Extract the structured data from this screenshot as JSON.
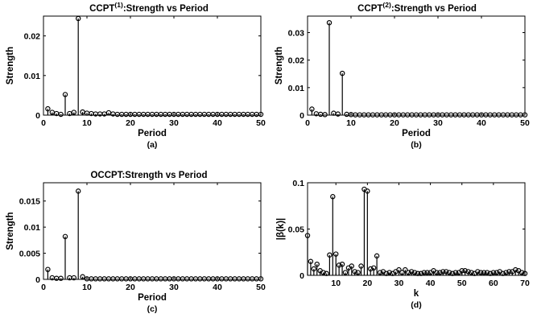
{
  "chart_data": [
    {
      "type": "stem",
      "title_main": "CCPT",
      "title_sup": "(1)",
      "title_rest": ":Strength vs Period",
      "xlabel": "Period",
      "ylabel": "Strength",
      "caption": "(a)",
      "xlim": [
        0,
        50
      ],
      "ylim": [
        0,
        0.025
      ],
      "xticks": [
        0,
        10,
        20,
        30,
        40,
        50
      ],
      "yticks": [
        0,
        0.01,
        0.02
      ],
      "ytick_labels": [
        "0",
        "0.01",
        "0.02"
      ],
      "x": [
        1,
        2,
        3,
        4,
        5,
        6,
        7,
        8,
        9,
        10,
        11,
        12,
        13,
        14,
        15,
        16,
        17,
        18,
        19,
        20,
        21,
        22,
        23,
        24,
        25,
        26,
        27,
        28,
        29,
        30,
        31,
        32,
        33,
        34,
        35,
        36,
        37,
        38,
        39,
        40,
        41,
        42,
        43,
        44,
        45,
        46,
        47,
        48,
        49,
        50
      ],
      "y": [
        0.0016,
        0.0007,
        0.0004,
        0.0002,
        0.0052,
        0.0004,
        0.0007,
        0.0244,
        0.0008,
        0.0005,
        0.0004,
        0.0003,
        0.0003,
        0.0003,
        0.0006,
        0.0003,
        0.0002,
        0.0002,
        0.0002,
        0.0002,
        0.0002,
        0.0002,
        0.0002,
        0.0002,
        0.0002,
        0.0002,
        0.0002,
        0.0002,
        0.0002,
        0.0002,
        0.0002,
        0.0002,
        0.0002,
        0.0002,
        0.0002,
        0.0002,
        0.0002,
        0.0002,
        0.0002,
        0.0002,
        0.0002,
        0.0002,
        0.0002,
        0.0002,
        0.0002,
        0.0002,
        0.0002,
        0.0002,
        0.0002,
        0.0002
      ]
    },
    {
      "type": "stem",
      "title_main": "CCPT",
      "title_sup": "(2)",
      "title_rest": ":Strength vs Period",
      "xlabel": "Period",
      "ylabel": "Strength",
      "caption": "(b)",
      "xlim": [
        0,
        50
      ],
      "ylim": [
        0,
        0.036
      ],
      "xticks": [
        0,
        10,
        20,
        30,
        40,
        50
      ],
      "yticks": [
        0,
        0.01,
        0.02,
        0.03
      ],
      "ytick_labels": [
        "0",
        "0.01",
        "0.02",
        "0.03"
      ],
      "x": [
        1,
        2,
        3,
        4,
        5,
        6,
        7,
        8,
        9,
        10,
        11,
        12,
        13,
        14,
        15,
        16,
        17,
        18,
        19,
        20,
        21,
        22,
        23,
        24,
        25,
        26,
        27,
        28,
        29,
        30,
        31,
        32,
        33,
        34,
        35,
        36,
        37,
        38,
        39,
        40,
        41,
        42,
        43,
        44,
        45,
        46,
        47,
        48,
        49,
        50
      ],
      "y": [
        0.0022,
        0.0005,
        0.0003,
        0.0002,
        0.0336,
        0.0007,
        0.0004,
        0.0152,
        0.0003,
        0.0002,
        0.0001,
        0.0001,
        0.0001,
        0.0001,
        0.0001,
        0.0001,
        0.0001,
        0.0001,
        0.0001,
        0.0001,
        0.0001,
        0.0001,
        0.0001,
        0.0001,
        0.0001,
        0.0001,
        0.0001,
        0.0001,
        0.0001,
        0.0001,
        0.0001,
        0.0001,
        0.0001,
        0.0001,
        0.0001,
        0.0001,
        0.0001,
        0.0001,
        0.0001,
        0.0001,
        0.0001,
        0.0001,
        0.0001,
        0.0001,
        0.0001,
        0.0001,
        0.0001,
        0.0001,
        0.0001,
        0.0001
      ]
    },
    {
      "type": "stem",
      "title_main": "OCCPT:Strength vs Period",
      "title_sup": "",
      "title_rest": "",
      "xlabel": "Period",
      "ylabel": "Strength",
      "caption": "(c)",
      "xlim": [
        0,
        50
      ],
      "ylim": [
        0,
        0.0185
      ],
      "xticks": [
        0,
        10,
        20,
        30,
        40,
        50
      ],
      "yticks": [
        0,
        0.005,
        0.01,
        0.015
      ],
      "ytick_labels": [
        "0",
        "0.005",
        "0.01",
        "0.015"
      ],
      "x": [
        1,
        2,
        3,
        4,
        5,
        6,
        7,
        8,
        9,
        10,
        11,
        12,
        13,
        14,
        15,
        16,
        17,
        18,
        19,
        20,
        21,
        22,
        23,
        24,
        25,
        26,
        27,
        28,
        29,
        30,
        31,
        32,
        33,
        34,
        35,
        36,
        37,
        38,
        39,
        40,
        41,
        42,
        43,
        44,
        45,
        46,
        47,
        48,
        49,
        50
      ],
      "y": [
        0.0019,
        0.0003,
        0.0002,
        0.0002,
        0.0082,
        0.0003,
        0.0003,
        0.0169,
        0.0005,
        0.0001,
        0.0001,
        0.0001,
        0.0001,
        0.0001,
        0.0001,
        0.0001,
        0.0001,
        0.0001,
        0.0001,
        0.0001,
        0.0001,
        0.0001,
        0.0001,
        0.0001,
        0.0001,
        0.0001,
        0.0001,
        0.0001,
        0.0001,
        0.0001,
        0.0001,
        0.0001,
        0.0001,
        0.0001,
        0.0001,
        0.0001,
        0.0001,
        0.0001,
        0.0001,
        0.0001,
        0.0001,
        0.0001,
        0.0001,
        0.0001,
        0.0001,
        0.0001,
        0.0001,
        0.0001,
        0.0001,
        0.0001
      ]
    },
    {
      "type": "stem",
      "title_main": "",
      "title_sup": "",
      "title_rest": "",
      "xlabel": "k",
      "ylabel": "|β(k)|",
      "caption": "(d)",
      "xlim": [
        1,
        70
      ],
      "ylim": [
        0,
        0.1
      ],
      "xticks": [
        10,
        20,
        30,
        40,
        50,
        60,
        70
      ],
      "yticks": [
        0,
        0.05,
        0.1
      ],
      "ytick_labels": [
        "0",
        "0.05",
        "0.1"
      ],
      "x": [
        1,
        2,
        3,
        4,
        5,
        6,
        7,
        8,
        9,
        10,
        11,
        12,
        13,
        14,
        15,
        16,
        17,
        18,
        19,
        20,
        21,
        22,
        23,
        24,
        25,
        26,
        27,
        28,
        29,
        30,
        31,
        32,
        33,
        34,
        35,
        36,
        37,
        38,
        39,
        40,
        41,
        42,
        43,
        44,
        45,
        46,
        47,
        48,
        49,
        50,
        51,
        52,
        53,
        54,
        55,
        56,
        57,
        58,
        59,
        60,
        61,
        62,
        63,
        64,
        65,
        66,
        67,
        68,
        69,
        70
      ],
      "y": [
        0.043,
        0.015,
        0.007,
        0.012,
        0.005,
        0.003,
        0.002,
        0.022,
        0.085,
        0.023,
        0.011,
        0.012,
        0.003,
        0.008,
        0.01,
        0.004,
        0.003,
        0.01,
        0.093,
        0.091,
        0.007,
        0.008,
        0.021,
        0.003,
        0.004,
        0.002,
        0.003,
        0.002,
        0.004,
        0.006,
        0.003,
        0.006,
        0.003,
        0.004,
        0.003,
        0.002,
        0.002,
        0.003,
        0.003,
        0.003,
        0.005,
        0.003,
        0.003,
        0.004,
        0.004,
        0.003,
        0.002,
        0.003,
        0.003,
        0.005,
        0.005,
        0.004,
        0.003,
        0.002,
        0.004,
        0.003,
        0.003,
        0.003,
        0.002,
        0.003,
        0.003,
        0.004,
        0.002,
        0.003,
        0.004,
        0.004,
        0.006,
        0.005,
        0.003,
        0.002
      ]
    }
  ]
}
